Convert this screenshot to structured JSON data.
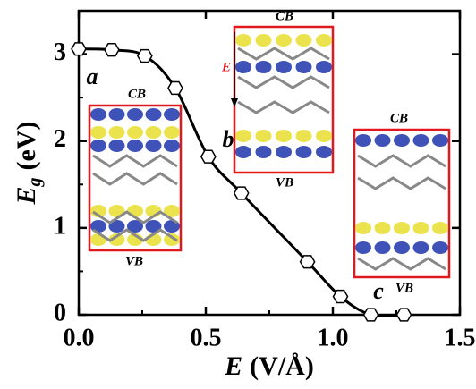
{
  "chart_data": {
    "type": "line",
    "x_label": {
      "symbol": "E",
      "unit": "(V/Å)"
    },
    "y_label": {
      "symbol": "E",
      "subscript": "g",
      "unit": "(eV)"
    },
    "x": [
      0.0,
      0.13,
      0.26,
      0.38,
      0.51,
      0.64,
      0.9,
      1.03,
      1.15,
      1.28
    ],
    "series": [
      {
        "color": "#000000",
        "values": [
          3.06,
          3.05,
          2.98,
          2.61,
          1.82,
          1.4,
          0.61,
          0.21,
          0.0,
          0.0
        ]
      }
    ],
    "xlim": [
      0,
      1.5
    ],
    "ylim": [
      0,
      3.5
    ],
    "xticks": [
      {
        "value": 0,
        "label": "0.0"
      },
      {
        "value": 0.5,
        "label": "0.5"
      },
      {
        "value": 1,
        "label": "1.0"
      },
      {
        "value": 1.5,
        "label": "1.5"
      }
    ],
    "yticks": [
      0,
      1,
      2,
      3
    ],
    "annotations": [
      "a",
      "b",
      "c",
      "CB",
      "VB",
      "CB",
      "VB",
      "E",
      "CB",
      "VB"
    ]
  }
}
